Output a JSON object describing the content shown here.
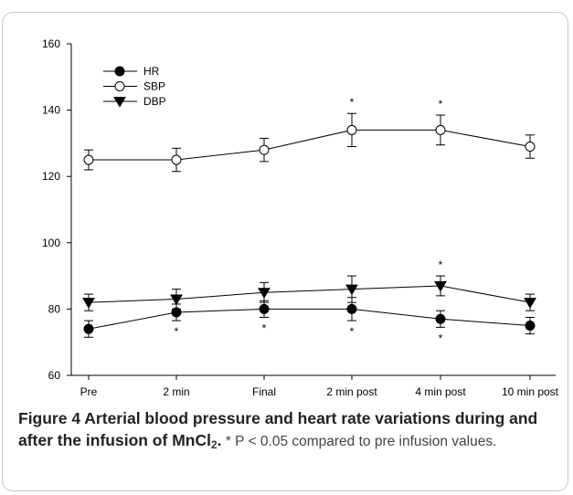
{
  "chart_data": {
    "type": "line",
    "categories": [
      "Pre",
      "2 min",
      "Final",
      "2 min post",
      "4 min post",
      "10 min post"
    ],
    "ylim": [
      60,
      160
    ],
    "yticks": [
      "60",
      "80",
      "100",
      "120",
      "140",
      "160"
    ],
    "grid": false,
    "legend_position": "top-left",
    "error_bars": true,
    "significance_marker": "*",
    "series": [
      {
        "name": "HR",
        "marker": "filled-circle",
        "values": [
          74,
          79,
          80,
          80,
          77,
          75
        ],
        "error": [
          2.5,
          2.5,
          2.5,
          3.5,
          2.5,
          2.5
        ],
        "sig_below": [
          false,
          true,
          true,
          true,
          true,
          false
        ],
        "sig_above": [
          false,
          false,
          false,
          false,
          false,
          false
        ]
      },
      {
        "name": "SBP",
        "marker": "open-circle",
        "values": [
          125,
          125,
          128,
          134,
          134,
          129
        ],
        "error": [
          3,
          3.5,
          3.5,
          5,
          4.5,
          3.5
        ],
        "sig_below": [
          false,
          false,
          false,
          false,
          false,
          false
        ],
        "sig_above": [
          false,
          false,
          false,
          true,
          true,
          false
        ]
      },
      {
        "name": "DBP",
        "marker": "filled-triangle-down",
        "values": [
          82,
          83,
          85,
          86,
          87,
          82
        ],
        "error": [
          2.5,
          3,
          3,
          4,
          3,
          2.5
        ],
        "sig_below": [
          false,
          false,
          false,
          false,
          false,
          false
        ],
        "sig_above": [
          false,
          false,
          false,
          false,
          true,
          false
        ]
      }
    ]
  },
  "caption": {
    "figure_label": "Figure 4",
    "title_part1": " Arterial blood pressure and heart rate variations during and after the infusion of MnCl",
    "subscript": "2",
    "title_end": ".",
    "body": " * P < 0.05 compared to pre infusion values."
  }
}
